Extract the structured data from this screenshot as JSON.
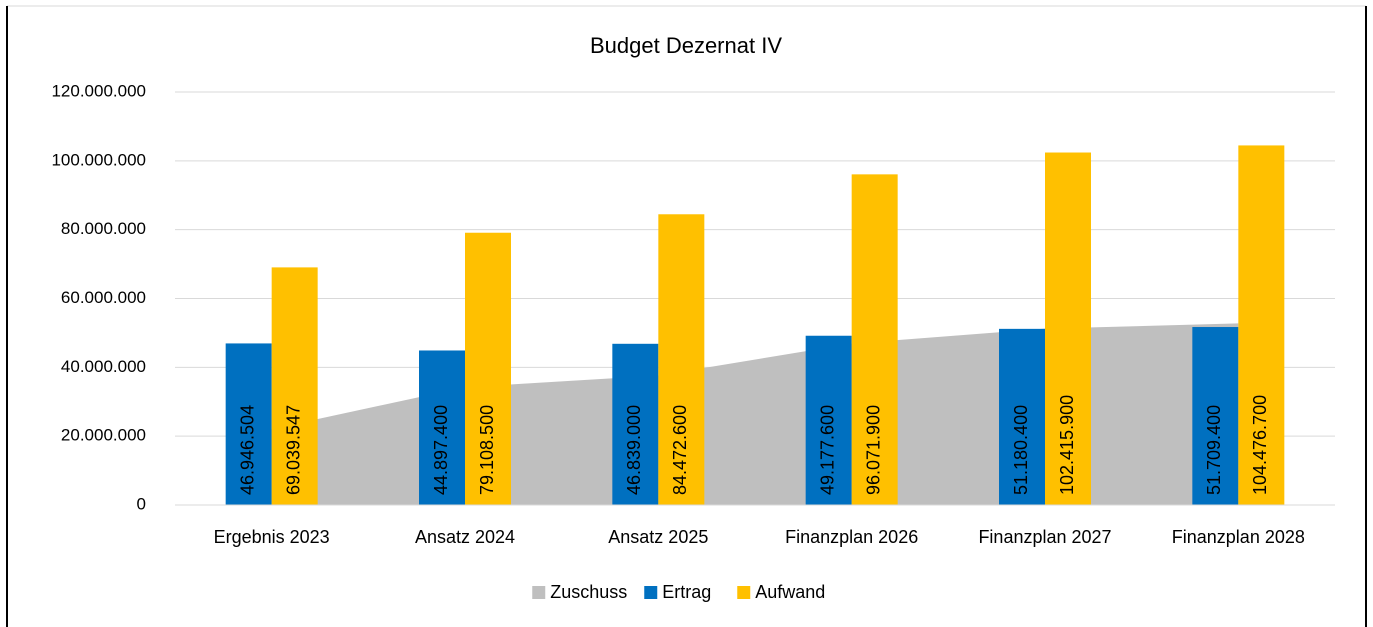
{
  "chart_data": {
    "type": "bar",
    "title": "Budget Dezernat IV",
    "categories": [
      "Ergebnis 2023",
      "Ansatz 2024",
      "Ansatz 2025",
      "Finanzplan 2026",
      "Finanzplan 2027",
      "Finanzplan 2028"
    ],
    "series": [
      {
        "name": "Zuschuss",
        "type": "area",
        "color": "#bfbfbf",
        "values": [
          22093043,
          34211100,
          37633600,
          46894300,
          51235500,
          52767300
        ]
      },
      {
        "name": "Ertrag",
        "type": "bar",
        "color": "#0070c0",
        "values": [
          46946504,
          44897400,
          46839000,
          49177600,
          51180400,
          51709400
        ],
        "value_labels": [
          "46.946.504",
          "44.897.400",
          "46.839.000",
          "49.177.600",
          "51.180.400",
          "51.709.400"
        ]
      },
      {
        "name": "Aufwand",
        "type": "bar",
        "color": "#ffc000",
        "values": [
          69039547,
          79108500,
          84472600,
          96071900,
          102415900,
          104476700
        ],
        "value_labels": [
          "69.039.547",
          "79.108.500",
          "84.472.600",
          "96.071.900",
          "102.415.900",
          "104.476.700"
        ]
      }
    ],
    "ylim": [
      0,
      120000000
    ],
    "yticks": [
      0,
      {
        "value": 20000000,
        "label": "20.000.000"
      },
      {
        "value": 40000000,
        "label": "40.000.000"
      },
      {
        "value": 60000000,
        "label": "60.000.000"
      },
      {
        "value": 80000000,
        "label": "80.000.000"
      },
      {
        "value": 100000000,
        "label": "100.000.000"
      },
      {
        "value": 120000000,
        "label": "120.000.000"
      }
    ],
    "grid": true,
    "legend": "bottom"
  }
}
